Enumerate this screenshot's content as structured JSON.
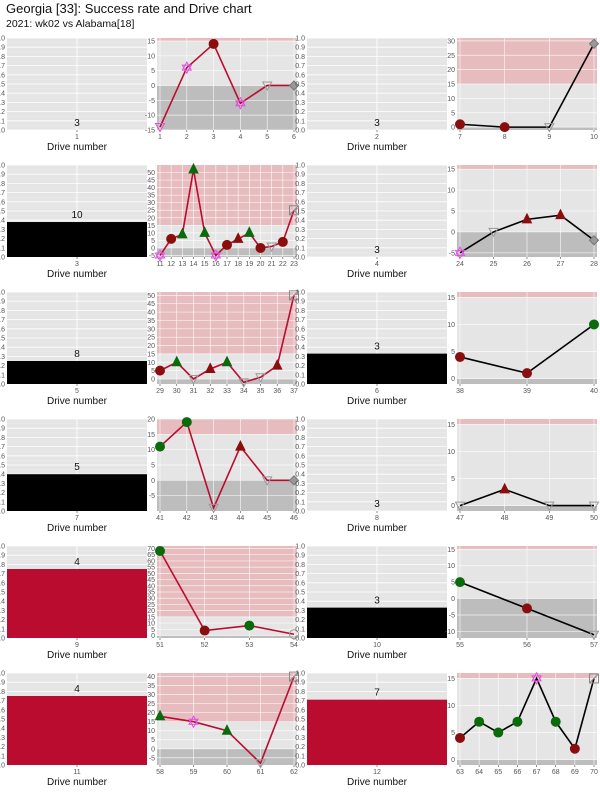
{
  "title": "Georgia [33]: Success rate and Drive chart",
  "subtitle": "2021: wk02 vs Alabama[18]",
  "colors": {
    "panel_bg": "#e5e5e5",
    "grid": "#ffffff",
    "red_zone": "#e6bcbf",
    "negative_zone": "#bdbdbd",
    "bar_black": "#000000",
    "bar_crimson": "#ba0c2f",
    "line_red": "#ba0c2f",
    "line_black": "#000000",
    "dark_red": "#8b0e0e",
    "green": "#0a6b0a",
    "magenta": "#e04ee0",
    "gray": "#999999"
  },
  "chart_data": [
    {
      "type": "bar",
      "drive": "1",
      "xlabel": "Drive number",
      "value": 0,
      "label": "3",
      "ylim": [
        0,
        1
      ],
      "yticks": [
        "0.0",
        "0.1",
        "0.2",
        "0.3",
        "0.4",
        "0.5",
        "0.6",
        "0.7",
        "0.8",
        "0.9",
        "1.0"
      ]
    },
    {
      "type": "line",
      "x": [
        1,
        2,
        3,
        4,
        5,
        6
      ],
      "y": [
        -14,
        6,
        14,
        -6,
        0,
        0
      ],
      "markers": [
        "tri-down-magenta",
        "star-magenta",
        "circle-darkred",
        "star-magenta",
        "tri-down-open",
        "diamond-gray"
      ],
      "ylim": [
        -15,
        16
      ],
      "yticks": [
        -15,
        -10,
        -5,
        0,
        5,
        10,
        15
      ],
      "line": "red",
      "redzone": true
    },
    {
      "type": "bar",
      "drive": "2",
      "xlabel": "Drive number",
      "value": 0,
      "label": "3",
      "ylim": [
        0,
        1
      ],
      "yticks": [
        "0.0",
        "0.1",
        "0.2",
        "0.3",
        "0.4",
        "0.5",
        "0.6",
        "0.7",
        "0.8",
        "0.9",
        "1.0"
      ]
    },
    {
      "type": "line",
      "x": [
        7,
        8,
        9,
        10
      ],
      "y": [
        1,
        0,
        0,
        29
      ],
      "markers": [
        "circle-darkred",
        "circle-darkred",
        "tri-down-open",
        "diamond-gray"
      ],
      "ylim": [
        -1,
        31
      ],
      "yticks": [
        0,
        5,
        10,
        15,
        20,
        25,
        30
      ],
      "line": "black",
      "redzone": true
    },
    {
      "type": "bar",
      "drive": "3",
      "xlabel": "Drive number",
      "value": 0.38,
      "label": "10",
      "color": "black",
      "ylim": [
        0,
        1
      ],
      "yticks": [
        "0.0",
        "0.1",
        "0.2",
        "0.3",
        "0.4",
        "0.5",
        "0.6",
        "0.7",
        "0.8",
        "0.9",
        "1.0"
      ]
    },
    {
      "type": "line",
      "x": [
        11,
        12,
        13,
        14,
        15,
        16,
        17,
        18,
        19,
        20,
        21,
        22,
        23
      ],
      "y": [
        -5,
        6,
        9,
        52,
        10,
        -5,
        2,
        6,
        10,
        0,
        1,
        4,
        25
      ],
      "markers": [
        "star-magenta",
        "circle-darkred",
        "tri-green",
        "tri-green",
        "tri-green",
        "star-magenta",
        "circle-darkred",
        "tri-darkred",
        "tri-green",
        "circle-darkred",
        "tri-down-open",
        "circle-darkred",
        "square-open"
      ],
      "ylim": [
        -6,
        55
      ],
      "yticks": [
        -5,
        0,
        5,
        10,
        15,
        20,
        25,
        30,
        35,
        40,
        45,
        50
      ],
      "line": "red",
      "redzone": true
    },
    {
      "type": "bar",
      "drive": "4",
      "xlabel": "Drive number",
      "value": 0,
      "label": "3",
      "ylim": [
        0,
        1
      ],
      "yticks": [
        "0.0",
        "0.1",
        "0.2",
        "0.3",
        "0.4",
        "0.5",
        "0.6",
        "0.7",
        "0.8",
        "0.9",
        "1.0"
      ]
    },
    {
      "type": "line",
      "x": [
        24,
        25,
        26,
        27,
        28
      ],
      "y": [
        -5,
        0,
        3,
        4,
        -2
      ],
      "markers": [
        "star-magenta",
        "tri-down-open",
        "tri-darkred",
        "tri-darkred",
        "diamond-gray"
      ],
      "ylim": [
        -6,
        16
      ],
      "yticks": [
        -5,
        0,
        5,
        10,
        15
      ],
      "line": "black",
      "redzone": true
    },
    {
      "type": "bar",
      "drive": "5",
      "xlabel": "Drive number",
      "value": 0.25,
      "label": "8",
      "color": "black",
      "ylim": [
        0,
        1
      ],
      "yticks": [
        "0.0",
        "0.1",
        "0.2",
        "0.3",
        "0.4",
        "0.5",
        "0.6",
        "0.7",
        "0.8",
        "0.9",
        "1.0"
      ]
    },
    {
      "type": "line",
      "x": [
        29,
        30,
        31,
        32,
        33,
        34,
        35,
        36,
        37
      ],
      "y": [
        5,
        10,
        0,
        6,
        10,
        -2,
        1,
        8,
        50
      ],
      "markers": [
        "circle-darkred",
        "tri-green",
        "tri-down-open",
        "tri-darkred",
        "tri-green",
        "tri-down-open",
        "tri-down-open",
        "tri-darkred",
        "square-open"
      ],
      "ylim": [
        -3,
        52
      ],
      "yticks": [
        0,
        5,
        10,
        15,
        20,
        25,
        30,
        35,
        40,
        45,
        50
      ],
      "line": "red",
      "redzone": true
    },
    {
      "type": "bar",
      "drive": "6",
      "xlabel": "Drive number",
      "value": 0.33,
      "label": "3",
      "color": "black",
      "ylim": [
        0,
        1
      ],
      "yticks": [
        "0.0",
        "0.1",
        "0.2",
        "0.3",
        "0.4",
        "0.5",
        "0.6",
        "0.7",
        "0.8",
        "0.9",
        "1.0"
      ]
    },
    {
      "type": "line",
      "x": [
        38,
        39,
        40
      ],
      "y": [
        4,
        1,
        10
      ],
      "markers": [
        "circle-darkred",
        "circle-darkred",
        "circle-green"
      ],
      "ylim": [
        -1,
        16
      ],
      "yticks": [
        0,
        5,
        10,
        15
      ],
      "line": "black",
      "redzone": true
    },
    {
      "type": "bar",
      "drive": "7",
      "xlabel": "Drive number",
      "value": 0.4,
      "label": "5",
      "color": "black",
      "ylim": [
        0,
        1
      ],
      "yticks": [
        "0.0",
        "0.1",
        "0.2",
        "0.3",
        "0.4",
        "0.5",
        "0.6",
        "0.7",
        "0.8",
        "0.9",
        "1.0"
      ]
    },
    {
      "type": "line",
      "x": [
        41,
        42,
        43,
        44,
        45,
        46
      ],
      "y": [
        11,
        19,
        -9,
        11,
        0,
        0
      ],
      "markers": [
        "circle-green",
        "circle-green",
        "tri-down-open",
        "tri-darkred",
        "tri-down-open",
        "diamond-gray"
      ],
      "ylim": [
        -10,
        20
      ],
      "yticks": [
        -5,
        0,
        5,
        10,
        15,
        20
      ],
      "line": "red",
      "redzone": true
    },
    {
      "type": "bar",
      "drive": "8",
      "xlabel": "Drive number",
      "value": 0,
      "label": "3",
      "ylim": [
        0,
        1
      ],
      "yticks": [
        "0.0",
        "0.1",
        "0.2",
        "0.3",
        "0.4",
        "0.5",
        "0.6",
        "0.7",
        "0.8",
        "0.9",
        "1.0"
      ]
    },
    {
      "type": "line",
      "x": [
        47,
        48,
        49,
        50
      ],
      "y": [
        0,
        3,
        0,
        0
      ],
      "markers": [
        "tri-down-open",
        "tri-darkred",
        "tri-down-open",
        "tri-down-open"
      ],
      "ylim": [
        -1,
        16
      ],
      "yticks": [
        0,
        5,
        10,
        15
      ],
      "line": "black",
      "redzone": true
    },
    {
      "type": "bar",
      "drive": "9",
      "xlabel": "Drive number",
      "value": 0.75,
      "label": "4",
      "color": "crimson",
      "ylim": [
        0,
        1
      ],
      "yticks": [
        "0.0",
        "0.1",
        "0.2",
        "0.3",
        "0.4",
        "0.5",
        "0.6",
        "0.7",
        "0.8",
        "0.9",
        "1.0"
      ]
    },
    {
      "type": "line",
      "x": [
        51,
        52,
        53,
        54
      ],
      "y": [
        68,
        4,
        8,
        1
      ],
      "markers": [
        "circle-green",
        "circle-darkred",
        "circle-green",
        "circle-open"
      ],
      "ylim": [
        -2,
        72
      ],
      "yticks": [
        0,
        5,
        10,
        15,
        20,
        25,
        30,
        35,
        40,
        45,
        50,
        55,
        60,
        65,
        70
      ],
      "line": "red",
      "redzone": true
    },
    {
      "type": "bar",
      "drive": "10",
      "xlabel": "Drive number",
      "value": 0.33,
      "label": "3",
      "color": "black",
      "ylim": [
        0,
        1
      ],
      "yticks": [
        "0.0",
        "0.1",
        "0.2",
        "0.3",
        "0.4",
        "0.5",
        "0.6",
        "0.7",
        "0.8",
        "0.9",
        "1.0"
      ]
    },
    {
      "type": "line",
      "x": [
        55,
        56,
        57
      ],
      "y": [
        5,
        -3,
        -11
      ],
      "markers": [
        "circle-green",
        "circle-darkred",
        "tri-down-open"
      ],
      "ylim": [
        -12,
        16
      ],
      "yticks": [
        -10,
        -5,
        0,
        5,
        10,
        15
      ],
      "line": "black",
      "redzone": true
    },
    {
      "type": "bar",
      "drive": "11",
      "xlabel": "Drive number",
      "value": 0.75,
      "label": "4",
      "color": "crimson",
      "ylim": [
        0,
        1
      ],
      "yticks": [
        "0.0",
        "0.1",
        "0.2",
        "0.3",
        "0.4",
        "0.5",
        "0.6",
        "0.7",
        "0.8",
        "0.9",
        "1.0"
      ]
    },
    {
      "type": "line",
      "x": [
        58,
        59,
        60,
        61,
        62
      ],
      "y": [
        18,
        15,
        10,
        -8,
        40
      ],
      "markers": [
        "tri-green",
        "star-magenta",
        "tri-green",
        "tri-down-open",
        "square-open"
      ],
      "ylim": [
        -9,
        42
      ],
      "yticks": [
        -5,
        0,
        5,
        10,
        15,
        20,
        25,
        30,
        35,
        40
      ],
      "line": "red",
      "redzone": true
    },
    {
      "type": "bar",
      "drive": "12",
      "xlabel": "Drive number",
      "value": 0.71,
      "label": "7",
      "color": "crimson",
      "ylim": [
        0,
        1
      ],
      "yticks": [
        "0.0",
        "0.1",
        "0.2",
        "0.3",
        "0.4",
        "0.5",
        "0.6",
        "0.7",
        "0.8",
        "0.9",
        "1.0"
      ]
    },
    {
      "type": "line",
      "x": [
        63,
        64,
        65,
        66,
        67,
        68,
        69,
        70
      ],
      "y": [
        4,
        7,
        5,
        7,
        15,
        7,
        2,
        15
      ],
      "markers": [
        "circle-darkred",
        "circle-green",
        "circle-green",
        "circle-green",
        "star-magenta",
        "circle-green",
        "circle-darkred",
        "square-open"
      ],
      "ylim": [
        -1,
        16
      ],
      "yticks": [
        0,
        5,
        10,
        15
      ],
      "line": "black",
      "redzone": true
    }
  ]
}
